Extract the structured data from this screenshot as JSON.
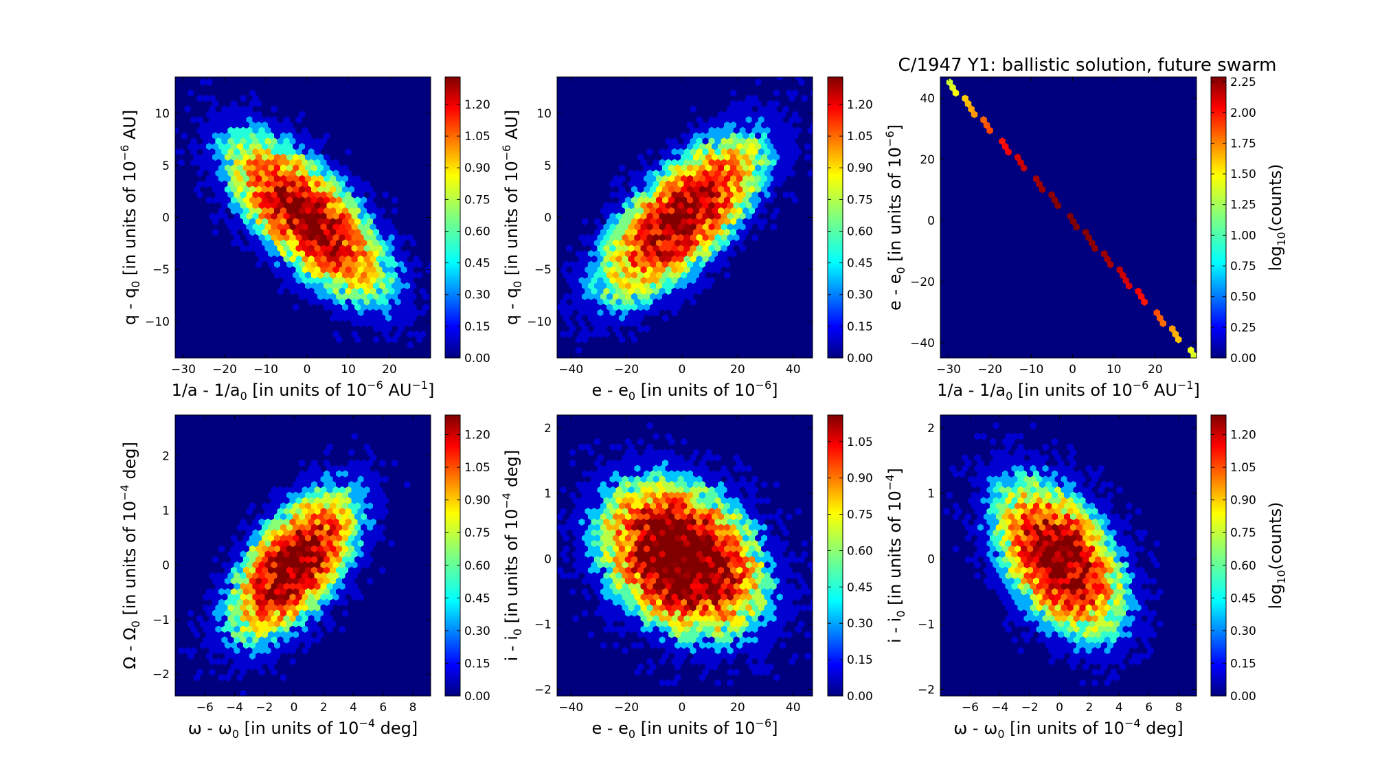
{
  "figure": {
    "suptitle": "C/1947 Y1:  ballistic solution, future swarm"
  },
  "colors": {
    "background": "#00007f",
    "colormap": [
      "#00007f",
      "#0000ff",
      "#007fff",
      "#00ffff",
      "#7fff7f",
      "#ffff00",
      "#ff7f00",
      "#ff0000",
      "#7f0000"
    ]
  },
  "panels": [
    {
      "id": "p1",
      "xlabel": {
        "pre": "1/a - 1/a",
        "sub": "0",
        "mid": " [in units of 10",
        "sup": "−6",
        "post": " AU",
        "sup2": "−1",
        "end": "]"
      },
      "ylabel": {
        "pre": "q - q",
        "sub": "0",
        "mid": " [in units of 10",
        "sup": "−6",
        "post": " AU]"
      },
      "xlim": [
        -32,
        30
      ],
      "ylim": [
        -13.5,
        13.5
      ],
      "xticks": [
        -30,
        -20,
        -10,
        0,
        10,
        20
      ],
      "xtick_labels": [
        "−30",
        "−20",
        "−10",
        "0",
        "10",
        "20"
      ],
      "yticks": [
        -10,
        -5,
        0,
        5,
        10
      ],
      "ytick_labels": [
        "−10",
        "−5",
        "0",
        "5",
        "10"
      ],
      "colorbar": {
        "vmax": 1.33,
        "ticks": [
          0,
          0.15,
          0.3,
          0.45,
          0.6,
          0.75,
          0.9,
          1.05,
          1.2
        ],
        "tick_labels": [
          "0.00",
          "0.15",
          "0.30",
          "0.45",
          "0.60",
          "0.75",
          "0.90",
          "1.05",
          "1.20"
        ],
        "label": ""
      }
    },
    {
      "id": "p2",
      "xlabel": {
        "pre": "e - e",
        "sub": "0",
        "mid": " [in units of 10",
        "sup": "−6",
        "post": "]"
      },
      "ylabel": {
        "pre": "q - q",
        "sub": "0",
        "mid": " [in units of 10",
        "sup": "−6",
        "post": " AU]"
      },
      "xlim": [
        -45,
        47
      ],
      "ylim": [
        -13.5,
        13.5
      ],
      "xticks": [
        -40,
        -20,
        0,
        20,
        40
      ],
      "xtick_labels": [
        "−40",
        "−20",
        "0",
        "20",
        "40"
      ],
      "yticks": [
        -10,
        -5,
        0,
        5,
        10
      ],
      "ytick_labels": [
        "−10",
        "−5",
        "0",
        "5",
        "10"
      ],
      "colorbar": {
        "vmax": 1.33,
        "ticks": [
          0,
          0.15,
          0.3,
          0.45,
          0.6,
          0.75,
          0.9,
          1.05,
          1.2
        ],
        "tick_labels": [
          "0.00",
          "0.15",
          "0.30",
          "0.45",
          "0.60",
          "0.75",
          "0.90",
          "1.05",
          "1.20"
        ],
        "label": ""
      }
    },
    {
      "id": "p3",
      "xlabel": {
        "pre": "1/a - 1/a",
        "sub": "0",
        "mid": " [in units of 10",
        "sup": "−6",
        "post": " AU",
        "sup2": "−1",
        "end": "]"
      },
      "ylabel": {
        "pre": "e - e",
        "sub": "0",
        "mid": " [in units of 10",
        "sup": "−6",
        "post": "]"
      },
      "xlim": [
        -32,
        30
      ],
      "ylim": [
        -45,
        47
      ],
      "xticks": [
        -30,
        -20,
        -10,
        0,
        10,
        20
      ],
      "xtick_labels": [
        "−30",
        "−20",
        "−10",
        "0",
        "10",
        "20"
      ],
      "yticks": [
        -40,
        -20,
        0,
        20,
        40
      ],
      "ytick_labels": [
        "−40",
        "−20",
        "0",
        "20",
        "40"
      ],
      "colorbar": {
        "vmax": 2.29,
        "ticks": [
          0,
          0.25,
          0.5,
          0.75,
          1.0,
          1.25,
          1.5,
          1.75,
          2.0,
          2.25
        ],
        "tick_labels": [
          "0.00",
          "0.25",
          "0.50",
          "0.75",
          "1.00",
          "1.25",
          "1.50",
          "1.75",
          "2.00",
          "2.25"
        ],
        "label": {
          "pre": "log",
          "sub": "10",
          "post": "(counts)"
        }
      }
    },
    {
      "id": "p4",
      "xlabel": {
        "pre": "ω - ω",
        "sub": "0",
        "mid": " [in units of 10",
        "sup": "−4",
        "post": "  deg]"
      },
      "ylabel": {
        "pre": "Ω - Ω",
        "sub": "0",
        "mid": " [in units of 10",
        "sup": "−4",
        "post": " deg]"
      },
      "xlim": [
        -8,
        9.2
      ],
      "ylim": [
        -2.4,
        2.75
      ],
      "xticks": [
        -6,
        -4,
        -2,
        0,
        2,
        4,
        6,
        8
      ],
      "xtick_labels": [
        "−6",
        "−4",
        "−2",
        "0",
        "2",
        "4",
        "6",
        "8"
      ],
      "yticks": [
        -2,
        -1,
        0,
        1,
        2
      ],
      "ytick_labels": [
        "−2",
        "−1",
        "0",
        "1",
        "2"
      ],
      "colorbar": {
        "vmax": 1.29,
        "ticks": [
          0,
          0.15,
          0.3,
          0.45,
          0.6,
          0.75,
          0.9,
          1.05,
          1.2
        ],
        "tick_labels": [
          "0.00",
          "0.15",
          "0.30",
          "0.45",
          "0.60",
          "0.75",
          "0.90",
          "1.05",
          "1.20"
        ],
        "label": ""
      }
    },
    {
      "id": "p5",
      "xlabel": {
        "pre": "e - e",
        "sub": "0",
        "mid": " [in units of 10",
        "sup": "−6",
        "post": "]"
      },
      "ylabel": {
        "pre": "i - i",
        "sub": "0",
        "mid": " [in units of 10",
        "sup": "−4",
        "post": " deg]"
      },
      "xlim": [
        -45,
        47
      ],
      "ylim": [
        -2.1,
        2.2
      ],
      "xticks": [
        -40,
        -20,
        0,
        20,
        40
      ],
      "xtick_labels": [
        "−40",
        "−20",
        "0",
        "20",
        "40"
      ],
      "yticks": [
        -2,
        -1,
        0,
        1,
        2
      ],
      "ytick_labels": [
        "−2",
        "−1",
        "0",
        "1",
        "2"
      ],
      "colorbar": {
        "vmax": 1.16,
        "ticks": [
          0,
          0.15,
          0.3,
          0.45,
          0.6,
          0.75,
          0.9,
          1.05
        ],
        "tick_labels": [
          "0.00",
          "0.15",
          "0.30",
          "0.45",
          "0.60",
          "0.75",
          "0.90",
          "1.05"
        ],
        "label": ""
      }
    },
    {
      "id": "p6",
      "xlabel": {
        "pre": "ω - ω",
        "sub": "0",
        "mid": " [in units of 10",
        "sup": "−4",
        "post": "  deg]"
      },
      "ylabel": {
        "pre": "i - i",
        "sub": "0",
        "mid": " [in units of 10",
        "sup": "−4",
        "post": "]"
      },
      "xlim": [
        -8,
        9.2
      ],
      "ylim": [
        -2.1,
        2.2
      ],
      "xticks": [
        -6,
        -4,
        -2,
        0,
        2,
        4,
        6,
        8
      ],
      "xtick_labels": [
        "−6",
        "−4",
        "−2",
        "0",
        "2",
        "4",
        "6",
        "8"
      ],
      "yticks": [
        -2,
        -1,
        0,
        1,
        2
      ],
      "ytick_labels": [
        "−2",
        "−1",
        "0",
        "1",
        "2"
      ],
      "colorbar": {
        "vmax": 1.29,
        "ticks": [
          0,
          0.15,
          0.3,
          0.45,
          0.6,
          0.75,
          0.9,
          1.05,
          1.2
        ],
        "tick_labels": [
          "0.00",
          "0.15",
          "0.30",
          "0.45",
          "0.60",
          "0.75",
          "0.90",
          "1.05",
          "1.20"
        ],
        "label": {
          "pre": "log",
          "sub": "10",
          "post": "(counts)"
        }
      }
    }
  ],
  "chart_data": [
    {
      "type": "heatmap",
      "subtype": "hexbin",
      "xlabel": "1/a - 1/a0 [in units of 10^-6 AU^-1]",
      "ylabel": "q - q0 [in units of 10^-6 AU]",
      "xlim": [
        -32,
        30
      ],
      "ylim": [
        -13.5,
        13.5
      ],
      "center": [
        0,
        0
      ],
      "spread": [
        10,
        4
      ],
      "correlation": -0.7,
      "color_scale": "log10(counts)",
      "color_range": [
        0,
        1.33
      ]
    },
    {
      "type": "heatmap",
      "subtype": "hexbin",
      "xlabel": "e - e0 [in units of 10^-6]",
      "ylabel": "q - q0 [in units of 10^-6 AU]",
      "xlim": [
        -45,
        47
      ],
      "ylim": [
        -13.5,
        13.5
      ],
      "center": [
        0,
        0
      ],
      "spread": [
        15,
        4
      ],
      "correlation": 0.7,
      "color_scale": "log10(counts)",
      "color_range": [
        0,
        1.33
      ]
    },
    {
      "type": "heatmap",
      "subtype": "hexbin",
      "xlabel": "1/a - 1/a0 [in units of 10^-6 AU^-1]",
      "ylabel": "e - e0 [in units of 10^-6]",
      "xlim": [
        -32,
        30
      ],
      "ylim": [
        -45,
        47
      ],
      "center": [
        0,
        0
      ],
      "spread": [
        10,
        15
      ],
      "correlation": -1.0,
      "line_fit": {
        "slope": -1.5,
        "intercept": 0
      },
      "color_scale": "log10(counts)",
      "color_range": [
        0,
        2.29
      ]
    },
    {
      "type": "heatmap",
      "subtype": "hexbin",
      "xlabel": "ω - ω0 [in units of 10^-4 deg]",
      "ylabel": "Ω - Ω0 [in units of 10^-4 deg]",
      "xlim": [
        -8,
        9.2
      ],
      "ylim": [
        -2.4,
        2.75
      ],
      "center": [
        0,
        0
      ],
      "spread": [
        2.2,
        0.7
      ],
      "correlation": 0.6,
      "color_scale": "log10(counts)",
      "color_range": [
        0,
        1.29
      ]
    },
    {
      "type": "heatmap",
      "subtype": "hexbin",
      "xlabel": "e - e0 [in units of 10^-6]",
      "ylabel": "i - i0 [in units of 10^-4 deg]",
      "xlim": [
        -45,
        47
      ],
      "ylim": [
        -2.1,
        2.2
      ],
      "center": [
        0,
        0
      ],
      "spread": [
        15,
        0.6
      ],
      "correlation": -0.3,
      "color_scale": "log10(counts)",
      "color_range": [
        0,
        1.16
      ]
    },
    {
      "type": "heatmap",
      "subtype": "hexbin",
      "xlabel": "ω - ω0 [in units of 10^-4 deg]",
      "ylabel": "i - i0 [in units of 10^-4]",
      "xlim": [
        -8,
        9.2
      ],
      "ylim": [
        -2.1,
        2.2
      ],
      "center": [
        0,
        0
      ],
      "spread": [
        2.2,
        0.6
      ],
      "correlation": -0.45,
      "color_scale": "log10(counts)",
      "color_range": [
        0,
        1.29
      ]
    }
  ]
}
